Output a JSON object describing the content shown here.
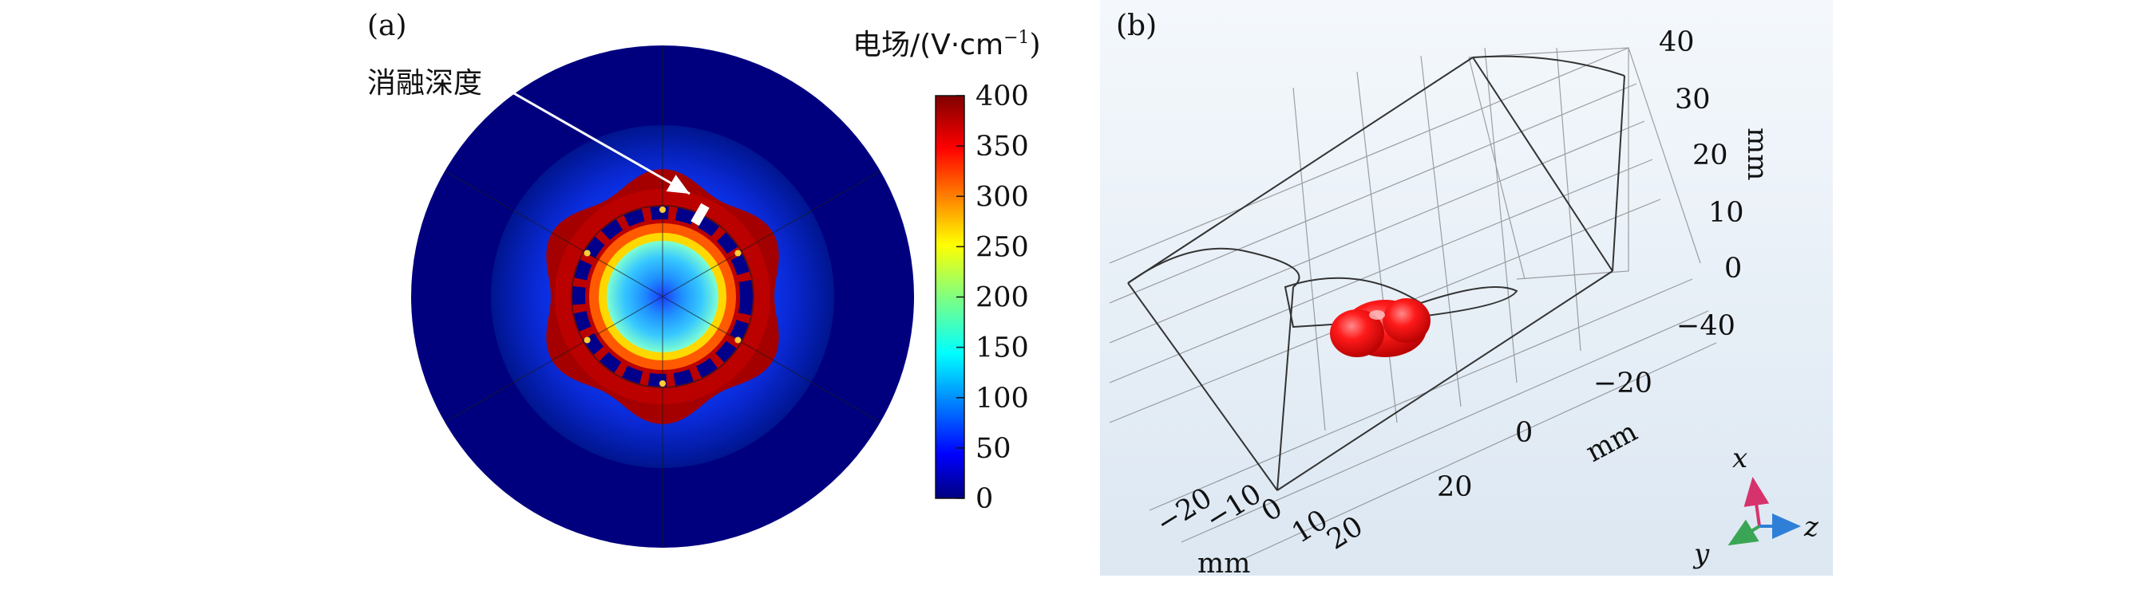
{
  "panel_a": {
    "label": "(a)",
    "annotation": "消融深度",
    "colorbar": {
      "title_prefix": "电场/(V·cm",
      "title_superscript": "−1",
      "title_suffix": ")",
      "ticks": [
        "400",
        "350",
        "300",
        "250",
        "200",
        "150",
        "100",
        "50",
        "0"
      ]
    }
  },
  "panel_b": {
    "label": "(b)",
    "vertical_axis": {
      "unit": "mm",
      "ticks": [
        "40",
        "30",
        "20",
        "10",
        "0"
      ]
    },
    "depth_axis": {
      "unit": "mm",
      "ticks": [
        "−40",
        "−20",
        "0",
        "20"
      ]
    },
    "front_axis": {
      "unit": "mm",
      "ticks": [
        "−20",
        "−10",
        "0",
        "10",
        "20"
      ]
    },
    "triad": {
      "x": "x",
      "y": "y",
      "z": "z"
    }
  },
  "colors": {
    "field_low": "#00007f",
    "field_high": "#7f0000",
    "lesion": "#ff1a1a",
    "triad_x": "#d6336c",
    "triad_y": "#3aa655",
    "triad_z": "#2e7fd8"
  }
}
